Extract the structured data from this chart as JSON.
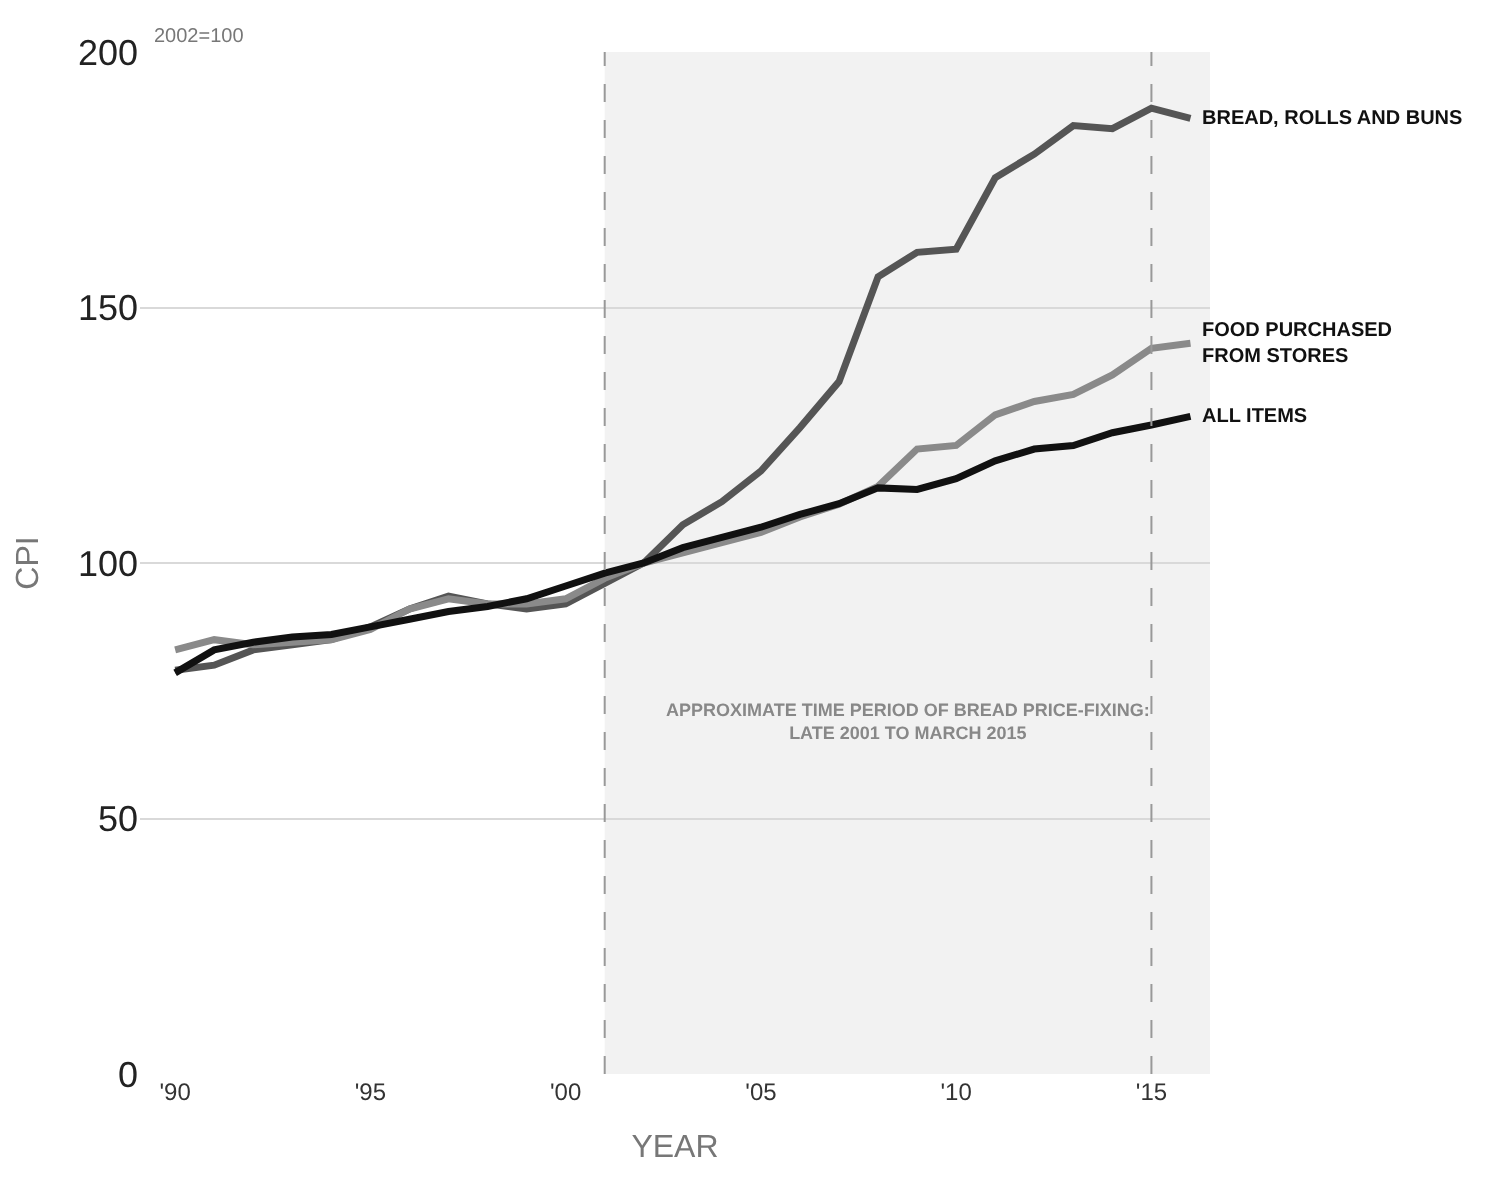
{
  "chart_data": {
    "type": "line",
    "xlabel": "YEAR",
    "ylabel": "CPI",
    "annotations": [
      "2002=100"
    ],
    "x": [
      1990,
      1991,
      1992,
      1993,
      1994,
      1995,
      1996,
      1997,
      1998,
      1999,
      2000,
      2001,
      2002,
      2003,
      2004,
      2005,
      2006,
      2007,
      2008,
      2009,
      2010,
      2011,
      2012,
      2013,
      2014,
      2015,
      2016
    ],
    "series": [
      {
        "name": "BREAD, ROLLS AND BUNS",
        "color": "#555555",
        "values": [
          79,
          80,
          83,
          84,
          85,
          87.5,
          91,
          93.5,
          92,
          91,
          92,
          96,
          100,
          107.5,
          112,
          118,
          126.5,
          135.5,
          156,
          160.8,
          161.4,
          175.4,
          180,
          185.6,
          185,
          189,
          187
        ]
      },
      {
        "name": "FOOD PURCHASED\nFROM STORES",
        "color": "#8a8a8a",
        "values": [
          83,
          85,
          84,
          84.5,
          85,
          87,
          91,
          93,
          92,
          92,
          93,
          97,
          100,
          102,
          104,
          106,
          109,
          111.5,
          115,
          122.3,
          123,
          129,
          131.6,
          133,
          136.8,
          142,
          143
        ]
      },
      {
        "name": "ALL ITEMS",
        "color": "#111111",
        "values": [
          78.5,
          83,
          84.5,
          85.5,
          86,
          87.5,
          89,
          90.5,
          91.5,
          93,
          95.5,
          98,
          100,
          103,
          105,
          107,
          109.5,
          111.6,
          114.7,
          114.4,
          116.5,
          120,
          122.3,
          123,
          125.5,
          127,
          128.7
        ]
      }
    ],
    "xlim": [
      1989.1,
      2016.5
    ],
    "ylim": [
      0,
      200
    ],
    "xticks": [
      {
        "value": 1990,
        "label": "'90"
      },
      {
        "value": 1995,
        "label": "'95"
      },
      {
        "value": 2000,
        "label": "'00"
      },
      {
        "value": 2005,
        "label": "'05"
      },
      {
        "value": 2010,
        "label": "'10"
      },
      {
        "value": 2015,
        "label": "'15"
      }
    ],
    "yticks": [
      0,
      50,
      100,
      150,
      200
    ],
    "bands": [
      {
        "axis": "x",
        "from": 2001,
        "to": 2016.5,
        "label": "APPROXIMATE TIME PERIOD OF BREAD PRICE-FIXING:\nLATE 2001 TO MARCH 2015",
        "color": "#f2f2f2"
      }
    ],
    "ref_lines": [
      {
        "axis": "x",
        "value": 2001,
        "line_style": "dashed",
        "color": "#999999"
      },
      {
        "axis": "x",
        "value": 2015,
        "line_style": "dashed",
        "color": "#999999"
      }
    ],
    "grid": "y",
    "legend": false,
    "marker": "none",
    "line_style": "solid"
  }
}
